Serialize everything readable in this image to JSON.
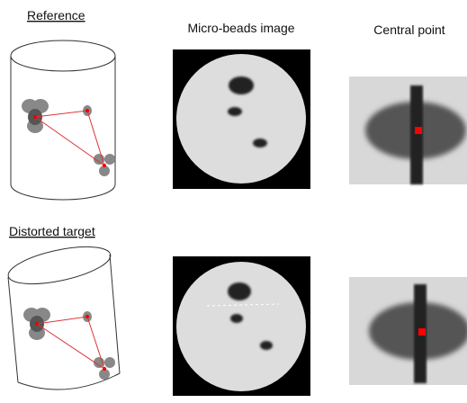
{
  "labels": {
    "reference": "Reference",
    "micro_beads": "Micro-beads image",
    "central_point": "Central point",
    "distorted_target": "Distorted target"
  }
}
